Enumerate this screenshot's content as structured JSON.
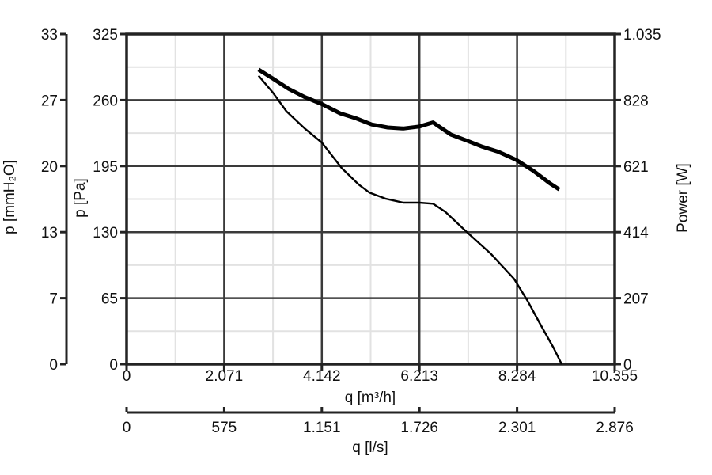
{
  "colors": {
    "background": "#ffffff",
    "major_grid": "#3a3a3a",
    "minor_grid": "#e2e2e2",
    "axis": "#232323",
    "curve": "#000000",
    "text": "#111111"
  },
  "chart_data": {
    "type": "line",
    "title": "",
    "grid": {
      "major": true,
      "minor": true,
      "minor_per_major": 1
    },
    "x_axis_m3h": {
      "label": "q [m³/h]",
      "tick_labels": [
        "0",
        "2.071",
        "4.142",
        "6.213",
        "8.284",
        "10.355"
      ],
      "tick_values": [
        0,
        2071,
        4142,
        6213,
        8284,
        10355
      ],
      "range": [
        0,
        10355
      ]
    },
    "x_axis_ls": {
      "label": "q [l/s]",
      "tick_labels": [
        "0",
        "575",
        "1.151",
        "1.726",
        "2.301",
        "2.876"
      ],
      "tick_values": [
        0,
        575,
        1151,
        1726,
        2301,
        2876
      ],
      "range": [
        0,
        2876
      ]
    },
    "y_axis_pa": {
      "label": "p [Pa]",
      "tick_labels": [
        "325",
        "260",
        "195",
        "130",
        "65",
        "0"
      ],
      "tick_values": [
        325,
        260,
        195,
        130,
        65,
        0
      ],
      "range": [
        0,
        325
      ]
    },
    "y_axis_mmh2o": {
      "label": "p [mmH₂O]",
      "tick_labels": [
        "33",
        "27",
        "20",
        "13",
        "7",
        "0"
      ],
      "tick_values": [
        33,
        27,
        20,
        13,
        7,
        0
      ],
      "range": [
        0,
        33
      ]
    },
    "y_axis_power": {
      "label": "Power [W]",
      "tick_labels": [
        "1.035",
        "828",
        "621",
        "414",
        "207",
        "0"
      ],
      "tick_values": [
        1035,
        828,
        621,
        414,
        207,
        0
      ],
      "range": [
        0,
        1035
      ]
    },
    "series": [
      {
        "name": "curve-thick",
        "stroke_width": 5,
        "units": "Pa (left axis scale)",
        "points": [
          [
            2800,
            290
          ],
          [
            3110,
            281
          ],
          [
            3440,
            271
          ],
          [
            3780,
            263
          ],
          [
            4145,
            256
          ],
          [
            4530,
            247
          ],
          [
            4870,
            242
          ],
          [
            5200,
            236
          ],
          [
            5540,
            233
          ],
          [
            5870,
            232
          ],
          [
            6210,
            234
          ],
          [
            6500,
            238
          ],
          [
            6880,
            226
          ],
          [
            7220,
            220
          ],
          [
            7550,
            214
          ],
          [
            7890,
            209
          ],
          [
            8270,
            201
          ],
          [
            8640,
            190
          ],
          [
            8980,
            178
          ],
          [
            9180,
            172
          ]
        ]
      },
      {
        "name": "curve-thin",
        "stroke_width": 2.4,
        "units": "Pa (left axis scale)",
        "points": [
          [
            2800,
            284
          ],
          [
            3110,
            267
          ],
          [
            3390,
            249
          ],
          [
            3780,
            232
          ],
          [
            4145,
            218
          ],
          [
            4565,
            193
          ],
          [
            4920,
            177
          ],
          [
            5150,
            169
          ],
          [
            5490,
            163
          ],
          [
            5870,
            159
          ],
          [
            6210,
            159
          ],
          [
            6500,
            158
          ],
          [
            6760,
            150
          ],
          [
            7220,
            130
          ],
          [
            7720,
            109
          ],
          [
            8220,
            84
          ],
          [
            8510,
            62
          ],
          [
            8780,
            39
          ],
          [
            9060,
            16
          ],
          [
            9230,
            0
          ]
        ]
      }
    ]
  }
}
